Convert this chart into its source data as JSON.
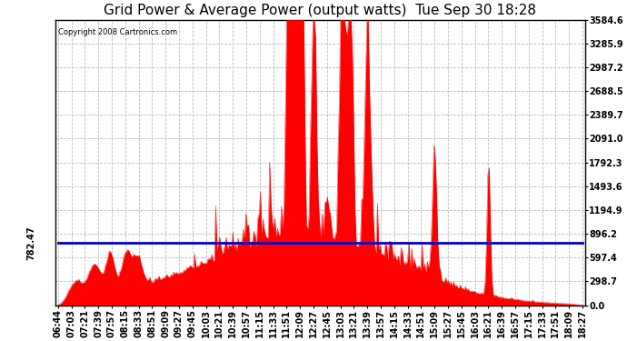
{
  "title": "Grid Power & Average Power (output watts)  Tue Sep 30 18:28",
  "copyright": "Copyright 2008 Cartronics.com",
  "average_line_y": 782.47,
  "average_label": "782.47",
  "y_max": 3584.6,
  "y_min": 0.0,
  "y_ticks": [
    0.0,
    298.7,
    597.4,
    896.2,
    1194.9,
    1493.6,
    1792.3,
    2091.0,
    2389.7,
    2688.5,
    2987.2,
    3285.9,
    3584.6
  ],
  "fill_color": "#FF0000",
  "avg_line_color": "#0000CC",
  "background_color": "#FFFFFF",
  "grid_color": "#BBBBBB",
  "x_labels": [
    "06:44",
    "07:03",
    "07:21",
    "07:39",
    "07:57",
    "08:15",
    "08:33",
    "08:51",
    "09:09",
    "09:27",
    "09:45",
    "10:03",
    "10:21",
    "10:39",
    "10:57",
    "11:15",
    "11:33",
    "11:51",
    "12:09",
    "12:27",
    "12:45",
    "13:03",
    "13:21",
    "13:39",
    "13:57",
    "14:15",
    "14:33",
    "14:51",
    "15:09",
    "15:27",
    "15:45",
    "16:03",
    "16:21",
    "16:39",
    "16:57",
    "17:15",
    "17:33",
    "17:51",
    "18:09",
    "18:27"
  ],
  "title_fontsize": 11,
  "tick_fontsize": 7
}
